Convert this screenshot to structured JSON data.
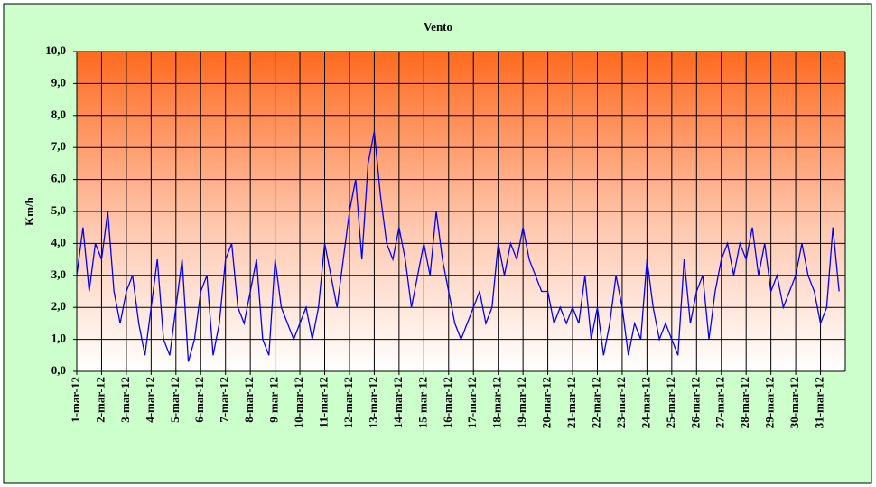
{
  "chart_data": {
    "type": "line",
    "title": "Vento",
    "y_label": "Km/h",
    "categories": [
      "1-mar-12",
      null,
      null,
      null,
      "2-mar-12",
      null,
      null,
      null,
      "3-mar-12",
      null,
      null,
      null,
      "4-mar-12",
      null,
      null,
      null,
      "5-mar-12",
      null,
      null,
      null,
      "6-mar-12",
      null,
      null,
      null,
      "7-mar-12",
      null,
      null,
      null,
      "8-mar-12",
      null,
      null,
      null,
      "9-mar-12",
      null,
      null,
      null,
      "10-mar-12",
      null,
      null,
      null,
      "11-mar-12",
      null,
      null,
      null,
      "12-mar-12",
      null,
      null,
      null,
      "13-mar-12",
      null,
      null,
      null,
      "14-mar-12",
      null,
      null,
      null,
      "15-mar-12",
      null,
      null,
      null,
      "16-mar-12",
      null,
      null,
      null,
      "17-mar-12",
      null,
      null,
      null,
      "18-mar-12",
      null,
      null,
      null,
      "19-mar-12",
      null,
      null,
      null,
      "20-mar-12",
      null,
      null,
      null,
      "21-mar-12",
      null,
      null,
      null,
      "22-mar-12",
      null,
      null,
      null,
      "23-mar-12",
      null,
      null,
      null,
      "24-mar-12",
      null,
      null,
      null,
      "25-mar-12",
      null,
      null,
      null,
      "26-mar-12",
      null,
      null,
      null,
      "27-mar-12",
      null,
      null,
      null,
      "28-mar-12",
      null,
      null,
      null,
      "29-mar-12",
      null,
      null,
      null,
      "30-mar-12",
      null,
      null,
      null,
      "31-mar-12",
      null,
      null,
      null
    ],
    "series": [
      {
        "name": "Vento",
        "color": "#0000ff",
        "values": [
          3.0,
          4.5,
          2.5,
          4.0,
          3.5,
          5.0,
          2.5,
          1.5,
          2.5,
          3.0,
          1.5,
          0.5,
          2.0,
          3.5,
          1.0,
          0.5,
          2.0,
          3.5,
          0.3,
          1.0,
          2.5,
          3.0,
          0.5,
          1.5,
          3.5,
          4.0,
          2.0,
          1.5,
          2.5,
          3.5,
          1.0,
          0.5,
          3.5,
          2.0,
          1.5,
          1.0,
          1.5,
          2.0,
          1.0,
          2.0,
          4.0,
          3.0,
          2.0,
          3.5,
          5.0,
          6.0,
          3.5,
          6.5,
          7.5,
          5.5,
          4.0,
          3.5,
          4.5,
          3.5,
          2.0,
          3.0,
          4.0,
          3.0,
          5.0,
          3.5,
          2.5,
          1.5,
          1.0,
          1.5,
          2.0,
          2.5,
          1.5,
          2.0,
          4.0,
          3.0,
          4.0,
          3.5,
          4.5,
          3.5,
          3.0,
          2.5,
          2.5,
          1.5,
          2.0,
          1.5,
          2.0,
          1.5,
          3.0,
          1.0,
          2.0,
          0.5,
          1.5,
          3.0,
          2.0,
          0.5,
          1.5,
          1.0,
          3.5,
          2.0,
          1.0,
          1.5,
          1.0,
          0.5,
          3.5,
          1.5,
          2.5,
          3.0,
          1.0,
          2.5,
          3.5,
          4.0,
          3.0,
          4.0,
          3.5,
          4.5,
          3.0,
          4.0,
          2.5,
          3.0,
          2.0,
          2.5,
          3.0,
          4.0,
          3.0,
          2.5,
          1.5,
          2.0,
          4.5,
          2.5
        ]
      }
    ],
    "ylim": [
      0,
      10
    ],
    "yticks": [
      {
        "value": 0,
        "label": "0,0"
      },
      {
        "value": 1,
        "label": "1,0"
      },
      {
        "value": 2,
        "label": "2,0"
      },
      {
        "value": 3,
        "label": "3,0"
      },
      {
        "value": 4,
        "label": "4,0"
      },
      {
        "value": 5,
        "label": "5,0"
      },
      {
        "value": 6,
        "label": "6,0"
      },
      {
        "value": 7,
        "label": "7,0"
      },
      {
        "value": 8,
        "label": "8,0"
      },
      {
        "value": 9,
        "label": "9,0"
      },
      {
        "value": 10,
        "label": "10,0"
      }
    ],
    "grid": true
  }
}
